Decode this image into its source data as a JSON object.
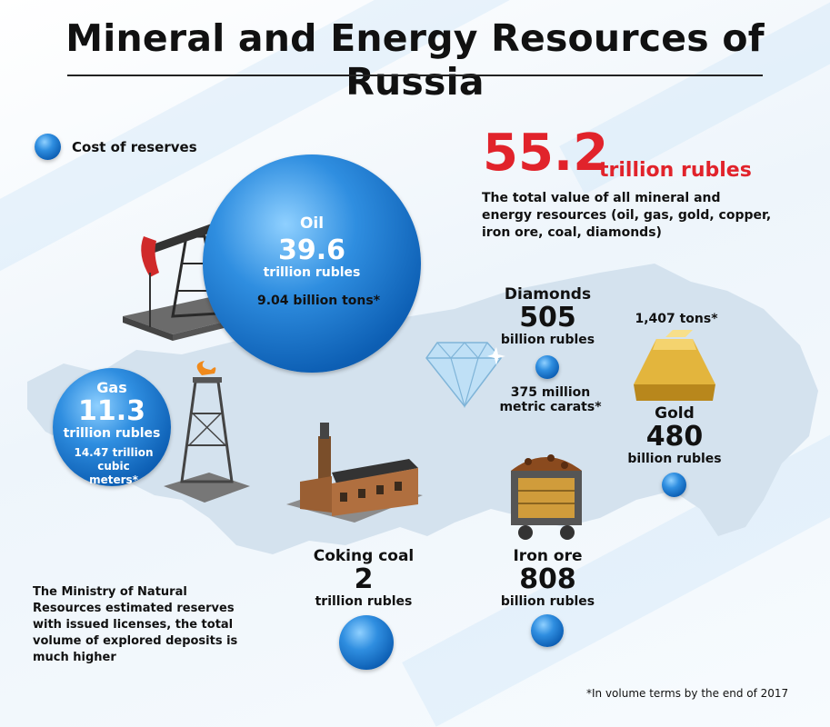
{
  "title": "Mineral and Energy Resources of Russia",
  "legend": {
    "label": "Cost of reserves"
  },
  "total": {
    "value": "55.2",
    "unit": "trillion rubles",
    "description": "The total value of all mineral and energy resources (oil, gas, gold, copper, iron ore, coal, diamonds)"
  },
  "chart_data": {
    "type": "bubble",
    "unit": "billion rubles",
    "categories": [
      "Oil",
      "Gas",
      "Diamonds",
      "Gold",
      "Coking coal",
      "Iron ore"
    ],
    "values": [
      39600,
      11300,
      505,
      480,
      2000,
      808
    ],
    "items": [
      {
        "name": "Oil",
        "value_text": "39.6",
        "unit_text": "trillion rubles",
        "volume": "9.04 billion tons*"
      },
      {
        "name": "Gas",
        "value_text": "11.3",
        "unit_text": "trillion rubles",
        "volume": "14.47 trillion cubic meters*"
      },
      {
        "name": "Diamonds",
        "value_text": "505",
        "unit_text": "billion rubles",
        "volume": "375 million metric carats*"
      },
      {
        "name": "Gold",
        "value_text": "480",
        "unit_text": "billion rubles",
        "volume": "1,407 tons*"
      },
      {
        "name": "Coking coal",
        "value_text": "2",
        "unit_text": "trillion rubles",
        "volume": ""
      },
      {
        "name": "Iron ore",
        "value_text": "808",
        "unit_text": "billion rubles",
        "volume": ""
      }
    ]
  },
  "note": "The Ministry of Natural Resources estimated reserves with issued licenses, the total volume of explored deposits is much higher",
  "footnote": "*In volume terms by the end of 2017",
  "colors": {
    "accent_red": "#e1232b",
    "bubble_blue": "#1670c8",
    "map": "#d4e2ee"
  }
}
